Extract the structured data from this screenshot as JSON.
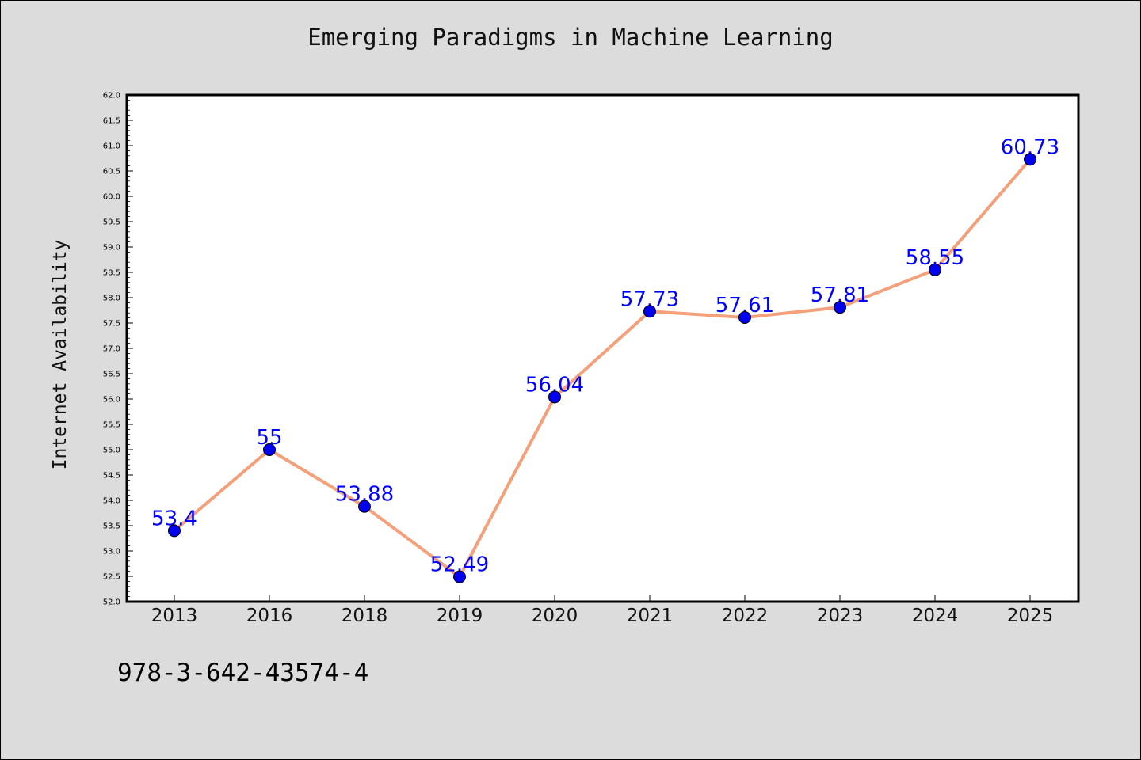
{
  "chart_data": {
    "type": "line",
    "title": "Emerging Paradigms in Machine Learning",
    "xlabel": "",
    "ylabel": "Internet Availability",
    "categories": [
      "2013",
      "2016",
      "2018",
      "2019",
      "2020",
      "2021",
      "2022",
      "2023",
      "2024",
      "2025"
    ],
    "series": [
      {
        "values": [
          53.4,
          55,
          53.88,
          52.49,
          56.04,
          57.73,
          57.61,
          57.81,
          58.55,
          60.73
        ]
      }
    ],
    "data_labels": [
      "53.4",
      "55",
      "53.88",
      "52.49",
      "56.04",
      "57.73",
      "57.61",
      "57.81",
      "58.55",
      "60.73"
    ],
    "ylim": [
      52.0,
      62.0
    ],
    "y_major_step": 0.5,
    "grid": false,
    "legend": "none",
    "colors": {
      "line": "#f4a07a",
      "marker": "#0000ee",
      "label": "#0000ff",
      "background": "#dcdcdc",
      "plot_area": "#ffffff"
    }
  },
  "footnote": "978-3-642-43574-4"
}
